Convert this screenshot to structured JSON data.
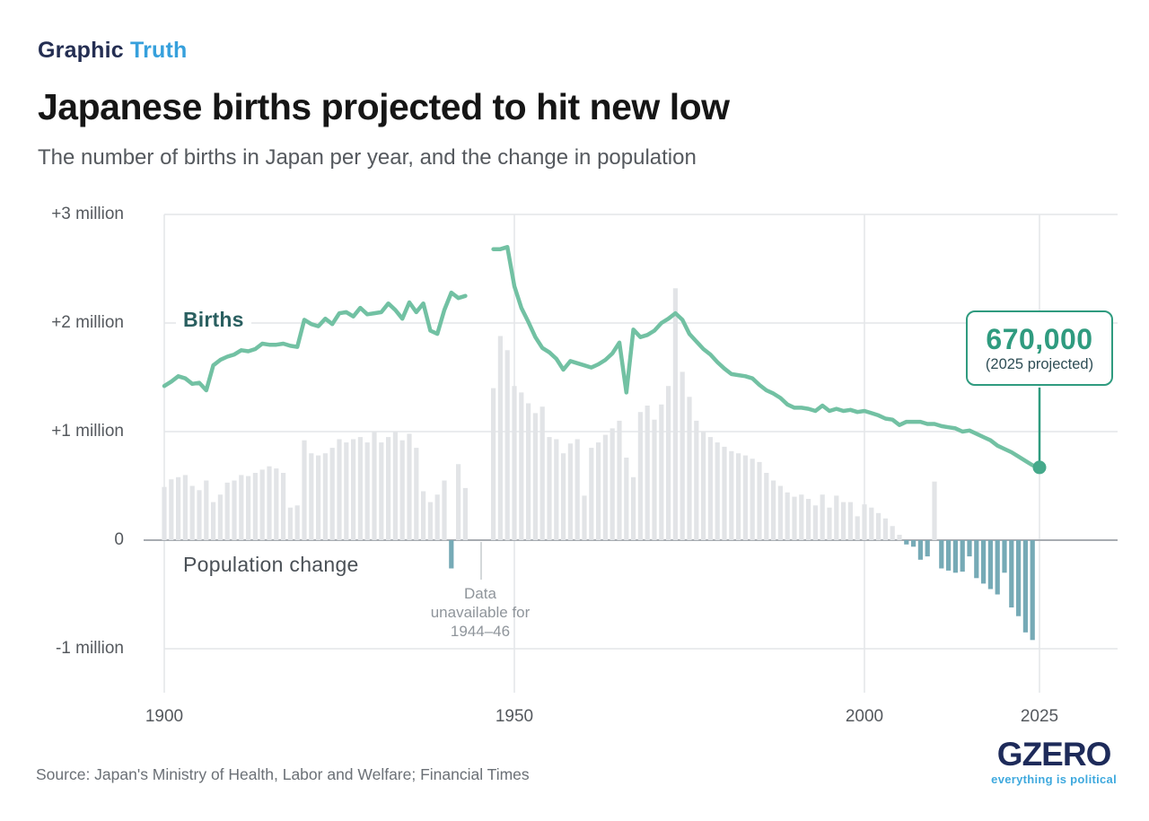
{
  "header": {
    "kicker_primary": "Graphic",
    "kicker_secondary": "Truth",
    "title": "Japanese births projected to hit new low",
    "subtitle": "The number of births in Japan per year, and the change in population"
  },
  "chart_data": {
    "type": "line+bar",
    "title": "Japanese births projected to hit new low",
    "subtitle": "The number of births in Japan per year, and the change in population",
    "unit": "millions of people per year",
    "grid": "on",
    "x_axis": {
      "range": [
        1900,
        2025
      ],
      "ticks": [
        1900,
        1950,
        2000,
        2025
      ]
    },
    "y_axis": {
      "range": [
        -1.4,
        3
      ],
      "ticks": [
        {
          "value": 3,
          "label": "+3 million"
        },
        {
          "value": 2,
          "label": "+2 million"
        },
        {
          "value": 1,
          "label": "+1 million"
        },
        {
          "value": 0,
          "label": "0"
        },
        {
          "value": -1,
          "label": "-1 million"
        }
      ]
    },
    "series": [
      {
        "name": "Births",
        "type": "line",
        "color": "#72c1a3",
        "segments": [
          {
            "start_year": 1900,
            "values": [
              1.42,
              1.46,
              1.51,
              1.49,
              1.44,
              1.45,
              1.38,
              1.61,
              1.66,
              1.69,
              1.71,
              1.75,
              1.74,
              1.76,
              1.81,
              1.8,
              1.8,
              1.81,
              1.79,
              1.78,
              2.03,
              1.99,
              1.97,
              2.04,
              1.99,
              2.09,
              2.1,
              2.06,
              2.14,
              2.08,
              2.09,
              2.1,
              2.18,
              2.12,
              2.04,
              2.19,
              2.1,
              2.18,
              1.93,
              1.9,
              2.12,
              2.28,
              2.23,
              2.25
            ]
          },
          {
            "start_year": 1947,
            "values": [
              2.68,
              2.68,
              2.7,
              2.34,
              2.14,
              2.01,
              1.87,
              1.77,
              1.73,
              1.67,
              1.57,
              1.65,
              1.63,
              1.61,
              1.59,
              1.62,
              1.66,
              1.72,
              1.82,
              1.36,
              1.94,
              1.87,
              1.89,
              1.93,
              2.0,
              2.04,
              2.09,
              2.03,
              1.9,
              1.83,
              1.76,
              1.71,
              1.64,
              1.58,
              1.53,
              1.52,
              1.51,
              1.49,
              1.43,
              1.38,
              1.35,
              1.31,
              1.25,
              1.22,
              1.22,
              1.21,
              1.19,
              1.24,
              1.19,
              1.21,
              1.19,
              1.2,
              1.18,
              1.19,
              1.17,
              1.15,
              1.12,
              1.11,
              1.06,
              1.09,
              1.09,
              1.09,
              1.07,
              1.07,
              1.05,
              1.04,
              1.03,
              1.0,
              1.01,
              0.98,
              0.95,
              0.92,
              0.87,
              0.84,
              0.81,
              0.77,
              0.73,
              0.69,
              0.67
            ]
          }
        ]
      },
      {
        "name": "Population change",
        "type": "bar",
        "color_positive": "#e2e4e7",
        "color_negative": "#76aab6",
        "segments": [
          {
            "start_year": 1900,
            "values": [
              0.49,
              0.56,
              0.58,
              0.6,
              0.5,
              0.46,
              0.55,
              0.35,
              0.42,
              0.53,
              0.55,
              0.6,
              0.59,
              0.62,
              0.65,
              0.68,
              0.66,
              0.62,
              0.3,
              0.32,
              0.92,
              0.8,
              0.78,
              0.8,
              0.85,
              0.93,
              0.9,
              0.93,
              0.95,
              0.9,
              1.0,
              0.9,
              0.95,
              1.0,
              0.92,
              0.98,
              0.85,
              0.45,
              0.35,
              0.42,
              0.55,
              -0.26,
              0.7,
              0.48
            ]
          },
          {
            "start_year": 1947,
            "values": [
              1.4,
              1.88,
              1.75,
              1.42,
              1.36,
              1.26,
              1.17,
              1.23,
              0.95,
              0.93,
              0.8,
              0.89,
              0.93,
              0.41,
              0.85,
              0.9,
              0.97,
              1.03,
              1.1,
              0.76,
              0.58,
              1.18,
              1.24,
              1.11,
              1.25,
              1.42,
              2.32,
              1.55,
              1.32,
              1.1,
              1.0,
              0.95,
              0.9,
              0.86,
              0.82,
              0.8,
              0.78,
              0.75,
              0.72,
              0.62,
              0.55,
              0.5,
              0.44,
              0.4,
              0.42,
              0.38,
              0.32,
              0.42,
              0.3,
              0.41,
              0.35,
              0.35,
              0.22,
              0.33,
              0.3,
              0.25,
              0.2,
              0.13,
              0.05,
              -0.04,
              -0.06,
              -0.18,
              -0.15,
              0.54,
              -0.26,
              -0.28,
              -0.3,
              -0.29,
              -0.15,
              -0.35,
              -0.4,
              -0.45,
              -0.5,
              -0.3,
              -0.62,
              -0.7,
              -0.85,
              -0.92
            ]
          }
        ]
      }
    ],
    "data_gap": {
      "years": "1944-46"
    },
    "annotations": {
      "births_label": "Births",
      "population_label": "Population change",
      "gap_note_lines": [
        "Data",
        "unavailable for",
        "1944–46"
      ],
      "callout": {
        "value": "670,000",
        "sub": "(2025 projected)",
        "year": 2025,
        "value_millions": 0.67
      }
    },
    "colors": {
      "line": "#72c1a3",
      "dot": "#46a98b",
      "bar_positive": "#e2e4e7",
      "bar_negative": "#76aab6",
      "callout_accent": "#2f9b7f",
      "gridline": "#e4e6e9",
      "zero_line": "#a7acb1"
    }
  },
  "footer": {
    "source": "Source: Japan's Ministry of Health, Labor and Welfare; Financial Times",
    "logo_text": "GZERO",
    "logo_tagline": "everything is political"
  }
}
